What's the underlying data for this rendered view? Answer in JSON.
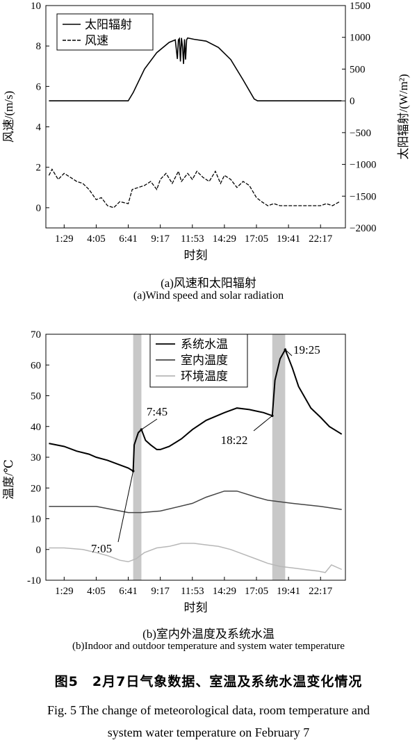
{
  "chart_data": [
    {
      "type": "line",
      "title": "",
      "xlabel": "时刻",
      "ylabel_left": "风速/(m/s)",
      "ylabel_right": "太阳辐射/(W/m²)",
      "x_ticks": [
        "1:29",
        "4:05",
        "6:41",
        "9:17",
        "11:53",
        "14:29",
        "17:05",
        "19:41",
        "22:17"
      ],
      "xlim_hours": [
        0,
        24.3
      ],
      "ylim_left": [
        -1,
        10
      ],
      "ylim_right": [
        -2000,
        1500
      ],
      "y_ticks_left": [
        "0",
        "2",
        "4",
        "6",
        "8",
        "10"
      ],
      "y_ticks_right": [
        "-2000",
        "-1500",
        "-1000",
        "-500",
        "0",
        "500",
        "1000",
        "1500"
      ],
      "legend_position": "top-left",
      "series": [
        {
          "name": "太阳辐射",
          "axis": "right",
          "style": "solid",
          "x": [
            "0:15",
            "6:41",
            "7:05",
            "8:00",
            "9:00",
            "10:00",
            "10:30",
            "10:40",
            "10:45",
            "10:50",
            "10:55",
            "11:00",
            "11:05",
            "11:10",
            "11:15",
            "11:20",
            "11:25",
            "11:30",
            "12:00",
            "13:00",
            "14:00",
            "15:00",
            "16:00",
            "16:54",
            "17:10",
            "24:00"
          ],
          "values": [
            0,
            0,
            130,
            500,
            760,
            920,
            960,
            660,
            960,
            980,
            620,
            990,
            850,
            580,
            970,
            650,
            960,
            990,
            970,
            940,
            840,
            650,
            330,
            30,
            0,
            0
          ]
        },
        {
          "name": "风速",
          "axis": "left",
          "style": "dashed",
          "x": [
            "0:15",
            "0:30",
            "1:00",
            "1:29",
            "2:00",
            "2:30",
            "3:00",
            "3:30",
            "4:05",
            "4:30",
            "5:00",
            "5:30",
            "6:00",
            "6:41",
            "7:00",
            "7:30",
            "8:00",
            "8:30",
            "9:00",
            "9:17",
            "9:45",
            "10:15",
            "10:45",
            "11:00",
            "11:30",
            "11:53",
            "12:15",
            "12:45",
            "13:15",
            "13:45",
            "14:10",
            "14:29",
            "15:00",
            "15:30",
            "16:00",
            "16:30",
            "17:05",
            "17:30",
            "18:00",
            "18:30",
            "19:00",
            "19:41",
            "20:15",
            "21:00",
            "21:30",
            "22:17",
            "22:45",
            "23:15",
            "23:50"
          ],
          "values": [
            1.6,
            1.9,
            1.4,
            1.7,
            1.5,
            1.3,
            1.2,
            0.9,
            0.4,
            0.5,
            0.1,
            0.0,
            0.3,
            0.2,
            0.9,
            1.0,
            1.1,
            1.3,
            0.9,
            1.4,
            1.7,
            1.2,
            1.8,
            1.3,
            1.7,
            1.4,
            1.8,
            1.5,
            1.3,
            1.8,
            1.2,
            1.6,
            1.4,
            1.0,
            1.3,
            1.1,
            0.5,
            0.3,
            0.1,
            0.2,
            0.1,
            0.1,
            0.1,
            0.1,
            0.1,
            0.1,
            0.2,
            0.1,
            0.3
          ]
        }
      ]
    },
    {
      "type": "line",
      "title": "",
      "xlabel": "时刻",
      "ylabel": "温度/℃",
      "x_ticks": [
        "1:29",
        "4:05",
        "6:41",
        "9:17",
        "11:53",
        "14:29",
        "17:05",
        "19:41",
        "22:17"
      ],
      "xlim_hours": [
        0,
        24.3
      ],
      "ylim": [
        -10,
        70
      ],
      "y_ticks": [
        "-10",
        "0",
        "10",
        "20",
        "30",
        "40",
        "50",
        "60",
        "70"
      ],
      "legend_position": "top-right",
      "shaded_periods": [
        [
          "7:05",
          "7:45"
        ],
        [
          "18:22",
          "19:25"
        ]
      ],
      "annotations": [
        {
          "text": "7:05",
          "x": "7:05",
          "y": 25.5
        },
        {
          "text": "7:45",
          "x": "7:45",
          "y": 39
        },
        {
          "text": "18:22",
          "x": "18:22",
          "y": 43.5
        },
        {
          "text": "19:25",
          "x": "19:25",
          "y": 65
        }
      ],
      "series": [
        {
          "name": "系统水温",
          "color": "#000000",
          "x": [
            "0:15",
            "1:29",
            "2:30",
            "3:30",
            "4:05",
            "5:00",
            "6:00",
            "6:41",
            "7:05",
            "7:10",
            "7:30",
            "7:45",
            "8:05",
            "8:30",
            "9:00",
            "9:17",
            "10:00",
            "11:00",
            "11:53",
            "13:00",
            "14:29",
            "15:30",
            "16:30",
            "17:05",
            "17:40",
            "18:22",
            "18:35",
            "19:00",
            "19:25",
            "20:00",
            "20:30",
            "21:30",
            "22:17",
            "23:00",
            "24:00"
          ],
          "values": [
            34.5,
            33.5,
            32.0,
            31.0,
            30.0,
            29.0,
            27.5,
            26.5,
            25.5,
            34.0,
            38.0,
            39.0,
            35.5,
            34.0,
            32.5,
            32.5,
            33.5,
            36.0,
            39.0,
            42.0,
            44.5,
            46.0,
            45.5,
            45.0,
            44.5,
            43.5,
            55.0,
            62.0,
            65.0,
            59.0,
            53.0,
            46.0,
            43.0,
            40.0,
            37.5
          ]
        },
        {
          "name": "室内温度",
          "color": "#444444",
          "x": [
            "0:15",
            "4:05",
            "6:41",
            "7:45",
            "9:17",
            "11:53",
            "13:00",
            "14:29",
            "15:30",
            "17:05",
            "18:00",
            "20:00",
            "22:17",
            "24:00"
          ],
          "values": [
            14,
            14,
            12,
            12,
            12.5,
            15,
            17,
            19,
            19,
            17,
            16,
            15,
            14,
            13
          ]
        },
        {
          "name": "环境温度",
          "color": "#b7b7b7",
          "x": [
            "0:15",
            "1:29",
            "3:00",
            "4:05",
            "5:00",
            "6:00",
            "6:41",
            "7:20",
            "8:00",
            "9:00",
            "10:00",
            "11:00",
            "12:00",
            "13:00",
            "14:00",
            "15:00",
            "16:00",
            "17:00",
            "18:00",
            "19:00",
            "20:00",
            "21:00",
            "22:00",
            "22:40",
            "23:10",
            "24:00"
          ],
          "values": [
            0.5,
            0.5,
            0.0,
            -1.0,
            -2.0,
            -3.5,
            -4.0,
            -3.0,
            -1.0,
            0.5,
            1.0,
            2.0,
            2.0,
            1.5,
            1.0,
            0.0,
            -1.5,
            -3.0,
            -4.5,
            -5.5,
            -6.0,
            -6.5,
            -7.0,
            -7.5,
            -5.0,
            -6.5
          ]
        }
      ]
    }
  ],
  "captions": {
    "a_cn": "(a)风速和太阳辐射",
    "a_en": "(a)Wind speed and solar radiation",
    "b_cn": "(b)室内外温度及系统水温",
    "b_en": "(b)Indoor and outdoor temperature and system water temperature"
  },
  "figure_caption": {
    "cn": "图5　2月7日气象数据、室温及系统水温变化情况",
    "en_line1": "Fig. 5 The change of meteorological data, room temperature and",
    "en_line2": "system water temperature on February 7"
  }
}
